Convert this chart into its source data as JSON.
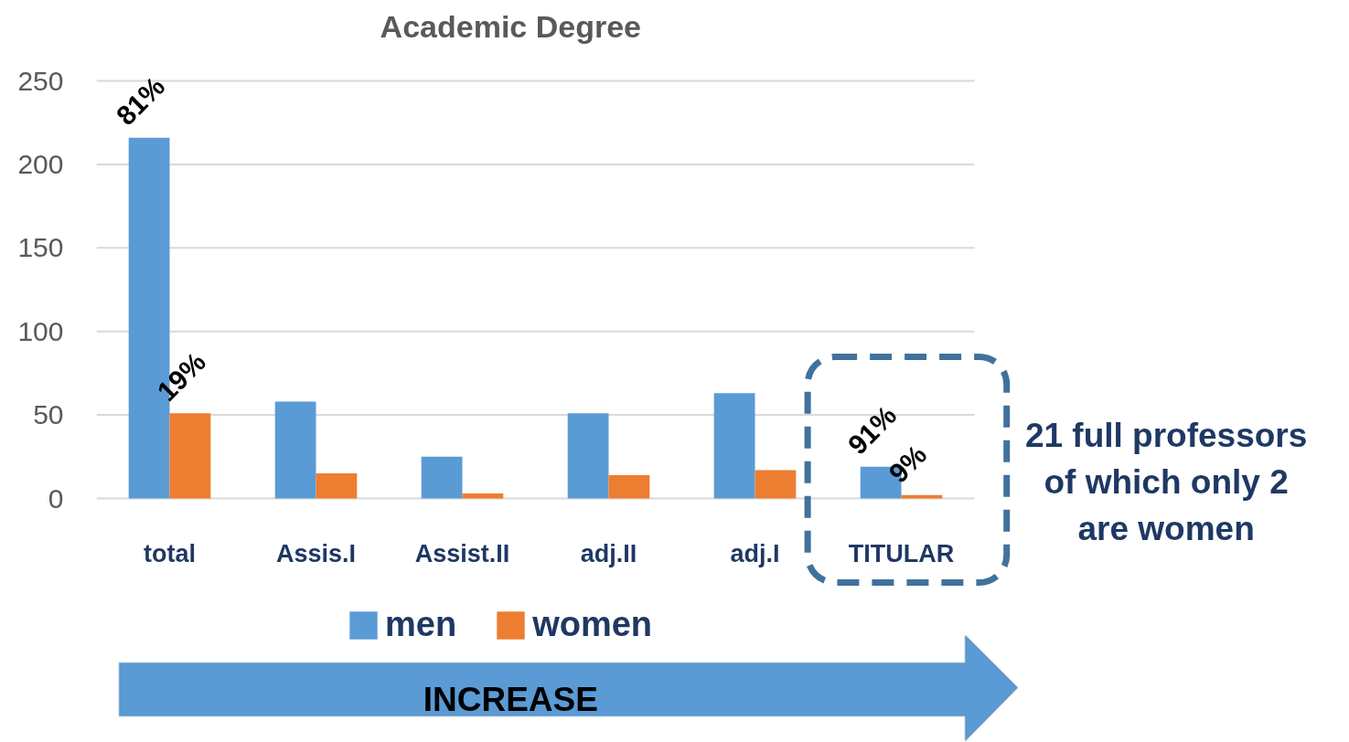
{
  "chart_data": {
    "type": "bar",
    "title": "Academic Degree",
    "categories": [
      "total",
      "Assis.I",
      "Assist.II",
      "adj.II",
      "adj.I",
      "TITULAR"
    ],
    "series": [
      {
        "name": "men",
        "color": "#5b9bd5",
        "values": [
          216,
          58,
          25,
          51,
          63,
          19
        ]
      },
      {
        "name": "women",
        "color": "#ed7d31",
        "values": [
          51,
          15,
          3,
          14,
          17,
          2
        ]
      }
    ],
    "ylim": [
      0,
      250
    ],
    "yticks": [
      0,
      50,
      100,
      150,
      200,
      250
    ],
    "grid": "y",
    "legend": "bottom",
    "annotations": [
      "21 full professors\nof which only 2\nare women",
      "INCREASE",
      {
        "text": "81%",
        "x": "total",
        "y": 216
      },
      {
        "text": "19%",
        "x": "total",
        "y": 51
      },
      {
        "text": "91%",
        "x": "TITULAR",
        "y": 19
      },
      {
        "text": "9%",
        "x": "TITULAR",
        "y": 2
      }
    ]
  }
}
